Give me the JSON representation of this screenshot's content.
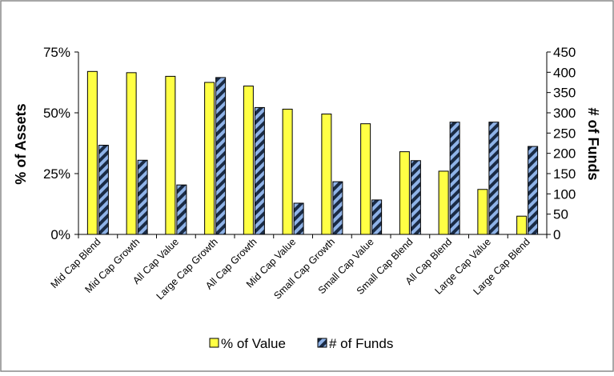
{
  "chart_data": {
    "type": "bar",
    "categories": [
      "Mid Cap Blend",
      "Mid Cap Growth",
      "All Cap Value",
      "Large Cap Growth",
      "All Cap Growth",
      "Mid Cap Value",
      "Small Cap Growth",
      "Small Cap Value",
      "Small Cap Blend",
      "All Cap Blend",
      "Large Cap Value",
      "Large Cap Blend"
    ],
    "series": [
      {
        "name": "% of Value",
        "axis": "left",
        "unit": "%",
        "color": "#ffff44",
        "values": [
          67,
          66.5,
          65,
          62.5,
          61,
          51.5,
          49.5,
          45.5,
          34,
          26,
          18.5,
          7.5
        ]
      },
      {
        "name": "# of Funds",
        "axis": "right",
        "color": "#1a2b45",
        "stripe_color": "#8fb3e8",
        "values": [
          220,
          183,
          122,
          387,
          313,
          77,
          130,
          85,
          182,
          277,
          277,
          217
        ]
      }
    ],
    "ylabel": "% of Assets",
    "ylabel_right": "# of Funds",
    "ylim": [
      0,
      75
    ],
    "ylim_right": [
      0,
      450
    ],
    "yticks": [
      "0%",
      "25%",
      "50%",
      "75%"
    ],
    "yticks_right": [
      "0",
      "50",
      "100",
      "150",
      "200",
      "250",
      "300",
      "350",
      "400",
      "450"
    ],
    "legend_placement": "bottom",
    "grid": false
  }
}
